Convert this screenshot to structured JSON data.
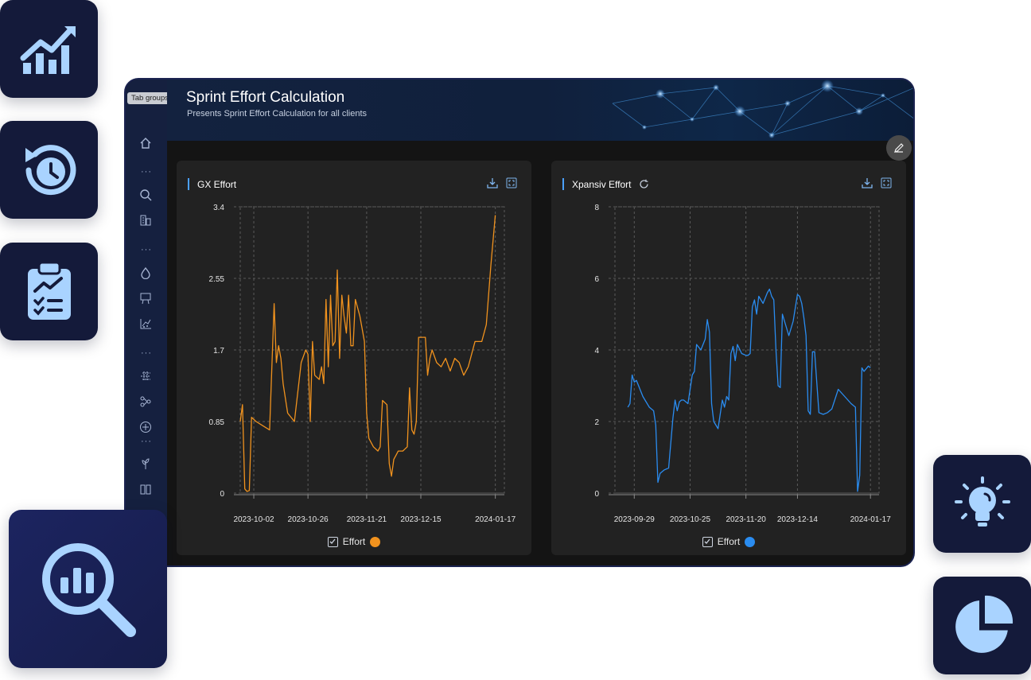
{
  "window": {
    "title": "Sprint Effort Calculation",
    "subtitle": "Presents Sprint Effort Calculation for all clients",
    "tab_groups_tooltip": "Tab groups"
  },
  "sidebar": {
    "icons": [
      "home-icon",
      "search-icon",
      "buildings-icon",
      "drop-icon",
      "presentation-icon",
      "scatter-icon",
      "grid-chart-icon",
      "network-icon",
      "plus-circle-icon",
      "plant-icon",
      "book-icon",
      "more-icon"
    ]
  },
  "floating_tiles": [
    "growth-chart-icon",
    "history-clock-icon",
    "clipboard-chart-icon",
    "magnifier-chart-icon",
    "lightbulb-icon",
    "pie-chart-icon"
  ],
  "colors": {
    "accent": "#4aa0ff",
    "orange": "#f0921e",
    "blue": "#2a8cf0",
    "tile": "#141a3a"
  },
  "charts": [
    {
      "title": "GX Effort",
      "legend": "Effort",
      "color": "#f0921e",
      "refresh": false
    },
    {
      "title": "Xpansiv Effort",
      "legend": "Effort",
      "color": "#2a8cf0",
      "refresh": true
    }
  ],
  "chart_data": [
    {
      "type": "line",
      "title": "GX Effort",
      "xlabel": "",
      "ylabel": "",
      "ylim": [
        0,
        3.4
      ],
      "yticks": [
        0,
        0.85,
        1.7,
        2.55,
        3.4
      ],
      "ytick_labels": [
        "0",
        "0.85",
        "1.7",
        "2.55",
        "3.4"
      ],
      "xtick_labels": [
        "2023-10-02",
        "2023-10-26",
        "2023-11-21",
        "2023-12-15",
        "2024-01-17"
      ],
      "xlim": [
        "2023-09-26",
        "2024-01-21"
      ],
      "series": [
        {
          "name": "Effort",
          "x": [
            "2023-09-26",
            "2023-09-27",
            "2023-09-28",
            "2023-09-29",
            "2023-09-30",
            "2023-10-01",
            "2023-10-03",
            "2023-10-06",
            "2023-10-09",
            "2023-10-11",
            "2023-10-12",
            "2023-10-13",
            "2023-10-14",
            "2023-10-15",
            "2023-10-17",
            "2023-10-20",
            "2023-10-23",
            "2023-10-25",
            "2023-10-26",
            "2023-10-27",
            "2023-10-28",
            "2023-10-29",
            "2023-10-31",
            "2023-11-01",
            "2023-11-02",
            "2023-11-03",
            "2023-11-04",
            "2023-11-05",
            "2023-11-06",
            "2023-11-07",
            "2023-11-08",
            "2023-11-09",
            "2023-11-10",
            "2023-11-11",
            "2023-11-12",
            "2023-11-13",
            "2023-11-14",
            "2023-11-15",
            "2023-11-16",
            "2023-11-18",
            "2023-11-20",
            "2023-11-21",
            "2023-11-22",
            "2023-11-24",
            "2023-11-26",
            "2023-11-27",
            "2023-11-28",
            "2023-11-30",
            "2023-12-01",
            "2023-12-02",
            "2023-12-03",
            "2023-12-04",
            "2023-12-05",
            "2023-12-07",
            "2023-12-09",
            "2023-12-10",
            "2023-12-11",
            "2023-12-12",
            "2023-12-13",
            "2023-12-14",
            "2023-12-15",
            "2023-12-17",
            "2023-12-18",
            "2023-12-19",
            "2023-12-20",
            "2023-12-22",
            "2023-12-24",
            "2023-12-26",
            "2023-12-28",
            "2023-12-30",
            "2024-01-01",
            "2024-01-03",
            "2024-01-05",
            "2024-01-08",
            "2024-01-11",
            "2024-01-13",
            "2024-01-15",
            "2024-01-16",
            "2024-01-17"
          ],
          "values": [
            0.85,
            1.05,
            0.05,
            0.02,
            0.03,
            0.9,
            0.85,
            0.8,
            0.75,
            2.25,
            1.55,
            1.75,
            1.6,
            1.3,
            0.95,
            0.85,
            1.55,
            1.7,
            1.65,
            0.85,
            1.8,
            1.4,
            1.35,
            1.5,
            1.3,
            2.3,
            1.5,
            2.35,
            1.75,
            1.8,
            2.65,
            1.6,
            2.35,
            2.1,
            1.9,
            2.35,
            1.75,
            1.75,
            2.3,
            2.1,
            1.8,
            0.95,
            0.65,
            0.55,
            0.5,
            0.55,
            1.1,
            1.05,
            0.35,
            0.2,
            0.4,
            0.45,
            0.5,
            0.5,
            0.55,
            1.25,
            0.75,
            0.7,
            0.85,
            1.85,
            1.85,
            1.85,
            1.4,
            1.6,
            1.7,
            1.55,
            1.5,
            1.6,
            1.45,
            1.6,
            1.55,
            1.4,
            1.5,
            1.8,
            1.8,
            2.0,
            2.7,
            3.0,
            3.3
          ]
        }
      ]
    },
    {
      "type": "line",
      "title": "Xpansiv Effort",
      "xlabel": "",
      "ylabel": "",
      "ylim": [
        0,
        8
      ],
      "yticks": [
        0,
        2,
        4,
        6,
        8
      ],
      "ytick_labels": [
        "0",
        "2",
        "4",
        "6",
        "8"
      ],
      "xtick_labels": [
        "2023-09-29",
        "2023-10-25",
        "2023-11-20",
        "2023-12-14",
        "2024-01-17"
      ],
      "xlim": [
        "2023-09-20",
        "2024-01-21"
      ],
      "series": [
        {
          "name": "Effort",
          "x": [
            "2023-09-26",
            "2023-09-27",
            "2023-09-28",
            "2023-09-29",
            "2023-09-30",
            "2023-10-01",
            "2023-10-02",
            "2023-10-03",
            "2023-10-04",
            "2023-10-05",
            "2023-10-06",
            "2023-10-07",
            "2023-10-08",
            "2023-10-09",
            "2023-10-10",
            "2023-10-11",
            "2023-10-13",
            "2023-10-15",
            "2023-10-17",
            "2023-10-18",
            "2023-10-19",
            "2023-10-20",
            "2023-10-21",
            "2023-10-22",
            "2023-10-24",
            "2023-10-26",
            "2023-10-27",
            "2023-10-28",
            "2023-10-30",
            "2023-11-01",
            "2023-11-02",
            "2023-11-03",
            "2023-11-04",
            "2023-11-05",
            "2023-11-07",
            "2023-11-09",
            "2023-11-10",
            "2023-11-11",
            "2023-11-12",
            "2023-11-13",
            "2023-11-14",
            "2023-11-15",
            "2023-11-16",
            "2023-11-18",
            "2023-11-20",
            "2023-11-21",
            "2023-11-22",
            "2023-11-23",
            "2023-11-24",
            "2023-11-25",
            "2023-11-26",
            "2023-11-28",
            "2023-11-30",
            "2023-12-01",
            "2023-12-02",
            "2023-12-03",
            "2023-12-04",
            "2023-12-05",
            "2023-12-06",
            "2023-12-07",
            "2023-12-08",
            "2023-12-09",
            "2023-12-10",
            "2023-12-12",
            "2023-12-14",
            "2023-12-15",
            "2023-12-16",
            "2023-12-17",
            "2023-12-18",
            "2023-12-19",
            "2023-12-20",
            "2023-12-21",
            "2023-12-22",
            "2023-12-24",
            "2023-12-26",
            "2023-12-28",
            "2023-12-29",
            "2023-12-30",
            "2024-01-02",
            "2024-01-05",
            "2024-01-08",
            "2024-01-10",
            "2024-01-11",
            "2024-01-12",
            "2024-01-13",
            "2024-01-14",
            "2024-01-16",
            "2024-01-17"
          ],
          "values": [
            2.4,
            2.5,
            3.3,
            3.1,
            3.15,
            3.0,
            2.85,
            2.7,
            2.6,
            2.5,
            2.4,
            2.35,
            2.3,
            1.9,
            0.3,
            0.55,
            0.65,
            0.7,
            2.1,
            2.6,
            2.3,
            2.55,
            2.6,
            2.6,
            2.5,
            3.3,
            3.4,
            4.15,
            4.0,
            4.3,
            4.85,
            4.5,
            2.5,
            2.0,
            1.8,
            2.6,
            2.4,
            2.7,
            2.6,
            3.9,
            4.1,
            3.7,
            4.15,
            3.9,
            3.85,
            3.85,
            3.9,
            5.2,
            5.4,
            5.0,
            5.5,
            5.3,
            5.6,
            5.7,
            5.5,
            5.4,
            4.0,
            3.0,
            2.95,
            5.0,
            4.8,
            4.6,
            4.4,
            4.8,
            5.55,
            5.5,
            5.3,
            4.9,
            4.4,
            2.3,
            2.2,
            3.95,
            3.95,
            2.25,
            2.2,
            2.25,
            2.3,
            2.35,
            2.9,
            2.7,
            2.5,
            2.4,
            0.05,
            0.5,
            3.5,
            3.4,
            3.55,
            3.5
          ]
        }
      ]
    }
  ]
}
